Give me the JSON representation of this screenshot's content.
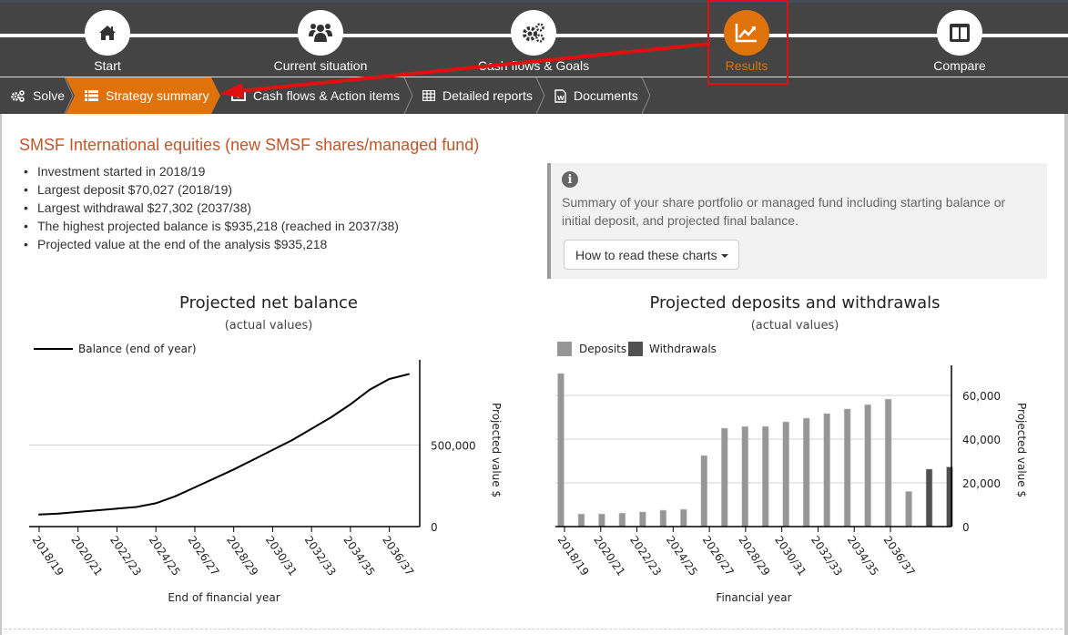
{
  "steps": [
    {
      "label": "Start",
      "icon": "home-icon",
      "active": false
    },
    {
      "label": "Current situation",
      "icon": "users-icon",
      "active": false
    },
    {
      "label": "Cash flows & Goals",
      "icon": "gears-icon",
      "active": false
    },
    {
      "label": "Results",
      "icon": "chart-line-icon",
      "active": true
    },
    {
      "label": "Compare",
      "icon": "columns-icon",
      "active": false
    }
  ],
  "subnav": [
    {
      "label": "Solve",
      "icon": "gears-icon"
    },
    {
      "label": "Strategy summary",
      "icon": "list-icon",
      "active": true
    },
    {
      "label": "Cash flows & Action items",
      "icon": "money-icon"
    },
    {
      "label": "Detailed reports",
      "icon": "table-icon"
    },
    {
      "label": "Documents",
      "icon": "word-file-icon"
    }
  ],
  "colors": {
    "accent": "#e0720b",
    "nav_bg": "#444444",
    "title": "#c0562a",
    "deposits": "#969696",
    "withdrawals": "#505050",
    "annotation": "#e01010"
  },
  "summary": {
    "title": "SMSF International equities (new SMSF shares/managed fund)",
    "bullets": [
      "Investment started in 2018/19",
      "Largest deposit $70,027 (2018/19)",
      "Largest withdrawal $27,302 (2037/38)",
      "The highest projected balance is $935,218 (reached in 2037/38)",
      "Projected value at the end of the analysis $935,218"
    ]
  },
  "info": {
    "text": "Summary of your share portfolio or managed fund including starting balance or initial deposit, and projected final balance.",
    "button_label": "How to read these charts"
  },
  "chart_data": [
    {
      "type": "line",
      "title": "Projected net balance",
      "subtitle": "(actual values)",
      "xlabel": "End of financial year",
      "ylabel": "Projected value $",
      "legend": [
        "Balance (end of year)"
      ],
      "legend_position": "top-left",
      "ylim": [
        0,
        1000000
      ],
      "yticks": [
        0,
        500000
      ],
      "ytick_labels": [
        "0",
        "500,000"
      ],
      "x": [
        "2018/19",
        "2019/20",
        "2020/21",
        "2021/22",
        "2022/23",
        "2023/24",
        "2024/25",
        "2025/26",
        "2026/27",
        "2027/28",
        "2028/29",
        "2029/30",
        "2030/31",
        "2031/32",
        "2032/33",
        "2033/34",
        "2034/35",
        "2035/36",
        "2036/37",
        "2037/38"
      ],
      "xtick_labels": [
        "2018/19",
        "2020/21",
        "2022/23",
        "2024/25",
        "2026/27",
        "2028/29",
        "2030/31",
        "2032/33",
        "2034/35",
        "2036/37"
      ],
      "series": [
        {
          "name": "Balance (end of year)",
          "values": [
            74000,
            80000,
            90000,
            100000,
            110000,
            120000,
            143000,
            186000,
            240000,
            295000,
            350000,
            410000,
            470000,
            530000,
            600000,
            670000,
            750000,
            840000,
            905000,
            935218
          ]
        }
      ]
    },
    {
      "type": "bar",
      "title": "Projected deposits and withdrawals",
      "subtitle": "(actual values)",
      "xlabel": "Financial year",
      "ylabel": "Projected value $",
      "legend": [
        "Deposits",
        "Withdrawals"
      ],
      "legend_position": "top-left",
      "ylim": [
        0,
        72000
      ],
      "yticks": [
        0,
        20000,
        40000,
        60000
      ],
      "ytick_labels": [
        "0",
        "20,000",
        "40,000",
        "60,000"
      ],
      "categories": [
        "2018/19",
        "2019/20",
        "2020/21",
        "2021/22",
        "2022/23",
        "2023/24",
        "2024/25",
        "2025/26",
        "2026/27",
        "2027/28",
        "2028/29",
        "2029/30",
        "2030/31",
        "2031/32",
        "2032/33",
        "2033/34",
        "2034/35",
        "2035/36",
        "2036/37",
        "2037/38"
      ],
      "xtick_labels": [
        "2018/19",
        "2020/21",
        "2022/23",
        "2024/25",
        "2026/27",
        "2028/29",
        "2030/31",
        "2032/33",
        "2034/35",
        "2036/37"
      ],
      "series": [
        {
          "name": "Deposits",
          "values": [
            70027,
            5800,
            5800,
            6200,
            6700,
            7500,
            7900,
            32500,
            45000,
            45800,
            45800,
            47900,
            49600,
            51700,
            53800,
            55800,
            58300,
            16100,
            0,
            0
          ]
        },
        {
          "name": "Withdrawals",
          "values": [
            0,
            0,
            0,
            0,
            0,
            0,
            0,
            0,
            0,
            0,
            0,
            0,
            0,
            0,
            0,
            0,
            0,
            0,
            26300,
            27302
          ]
        }
      ]
    }
  ]
}
